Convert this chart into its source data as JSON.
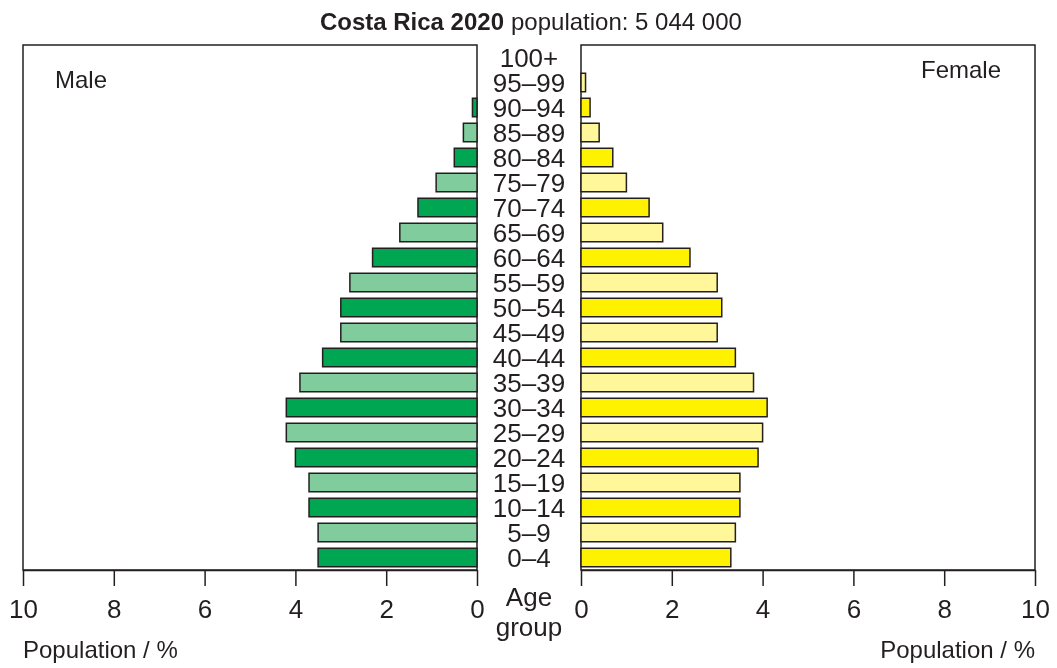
{
  "chart_data": [
    {
      "type": "bar",
      "orientation": "horizontal",
      "title": "Costa Rica 2020",
      "xlabel": "Population / %",
      "ylabel": "Age group",
      "categories": [
        "100+",
        "95–99",
        "90–94",
        "85–89",
        "80–84",
        "75–79",
        "70–74",
        "65–69",
        "60–64",
        "55–59",
        "50–54",
        "45–49",
        "40–44",
        "35–39",
        "30–34",
        "25–29",
        "20–24",
        "15–19",
        "10–14",
        "5–9",
        "0–4"
      ],
      "xlim": [
        10,
        0
      ],
      "xticks": [
        10,
        8,
        6,
        4,
        2,
        0
      ],
      "series": [
        {
          "name": "Male",
          "colors": [
            "#80cc9c",
            "#00a651",
            "#00a651",
            "#80cc9c",
            "#00a651",
            "#80cc9c",
            "#00a651",
            "#80cc9c",
            "#00a651",
            "#80cc9c",
            "#00a651",
            "#80cc9c",
            "#00a651",
            "#80cc9c",
            "#00a651",
            "#80cc9c",
            "#00a651",
            "#80cc9c",
            "#00a651",
            "#80cc9c",
            "#00a651"
          ],
          "values": [
            0,
            0,
            0.1,
            0.3,
            0.5,
            0.9,
            1.3,
            1.7,
            2.3,
            2.8,
            3.0,
            3.0,
            3.4,
            3.9,
            4.2,
            4.2,
            4.0,
            3.7,
            3.7,
            3.5,
            3.5
          ]
        }
      ]
    },
    {
      "type": "bar",
      "orientation": "horizontal",
      "subtitle": "population: 5 044 000",
      "xlabel": "Population / %",
      "categories": [
        null,
        null,
        null,
        null,
        null,
        null,
        null,
        null,
        null,
        null,
        null,
        null,
        null,
        null,
        null,
        null,
        null,
        null,
        null,
        null,
        null
      ],
      "xlim": [
        0,
        10
      ],
      "xticks": [
        0,
        2,
        4,
        6,
        8,
        10
      ],
      "series": [
        {
          "name": "Female",
          "colors": [
            "#fff799",
            "#fff799",
            "#fff200",
            "#fff799",
            "#fff200",
            "#fff799",
            "#fff200",
            "#fff799",
            "#fff200",
            "#fff799",
            "#fff200",
            "#fff799",
            "#fff200",
            "#fff799",
            "#fff200",
            "#fff799",
            "#fff200",
            "#fff799",
            "#fff200",
            "#fff799",
            "#fff200"
          ],
          "values": [
            0,
            0.1,
            0.2,
            0.4,
            0.7,
            1.0,
            1.5,
            1.8,
            2.4,
            3.0,
            3.1,
            3.0,
            3.4,
            3.8,
            4.1,
            4.0,
            3.9,
            3.5,
            3.5,
            3.4,
            3.3
          ]
        }
      ]
    }
  ]
}
